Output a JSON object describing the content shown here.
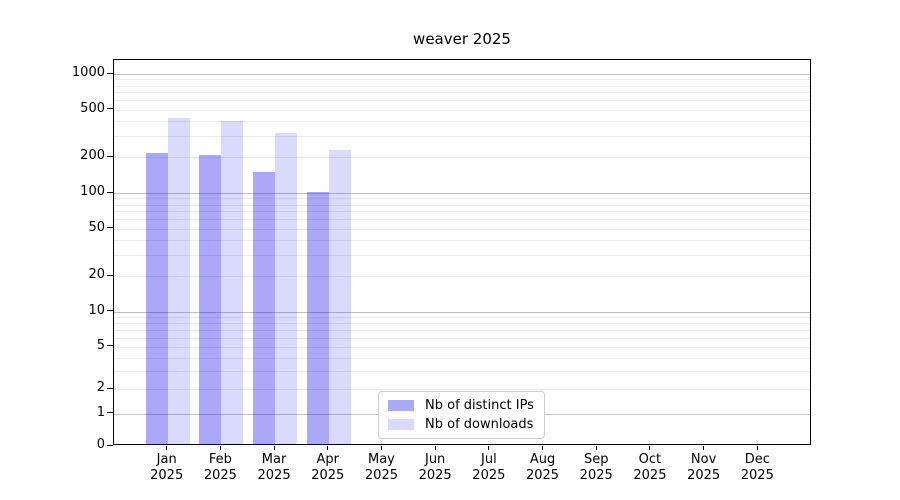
{
  "chart_data": {
    "type": "bar",
    "title": "weaver 2025",
    "categories": [
      "Jan",
      "Feb",
      "Mar",
      "Apr",
      "May",
      "Jun",
      "Jul",
      "Aug",
      "Sep",
      "Oct",
      "Nov",
      "Dec"
    ],
    "year_label": "2025",
    "series": [
      {
        "name": "Nb of distinct IPs",
        "color_key": "bar_ips",
        "values": [
          215,
          210,
          150,
          102,
          0,
          0,
          0,
          0,
          0,
          0,
          0,
          0
        ]
      },
      {
        "name": "Nb of downloads",
        "color_key": "bar_downloads",
        "values": [
          425,
          405,
          320,
          230,
          0,
          0,
          0,
          0,
          0,
          0,
          0,
          0
        ]
      }
    ],
    "yticks": [
      0,
      1,
      2,
      5,
      10,
      20,
      50,
      100,
      200,
      500,
      1000
    ],
    "ylim": [
      0,
      1000
    ],
    "yscale": "asinh-log",
    "xlabel": "",
    "ylabel": "",
    "grid": "horizontal major+minor",
    "legend_position": "lower center inside axes"
  },
  "colors": {
    "bar_ips": "rgba(10,10,235,0.35)",
    "bar_downloads": "rgba(10,10,235,0.15)",
    "grid_major": "#c0c0c0",
    "grid_minor": "#e9e9e9",
    "axis": "#000000",
    "legend_border": "#cccccc"
  }
}
